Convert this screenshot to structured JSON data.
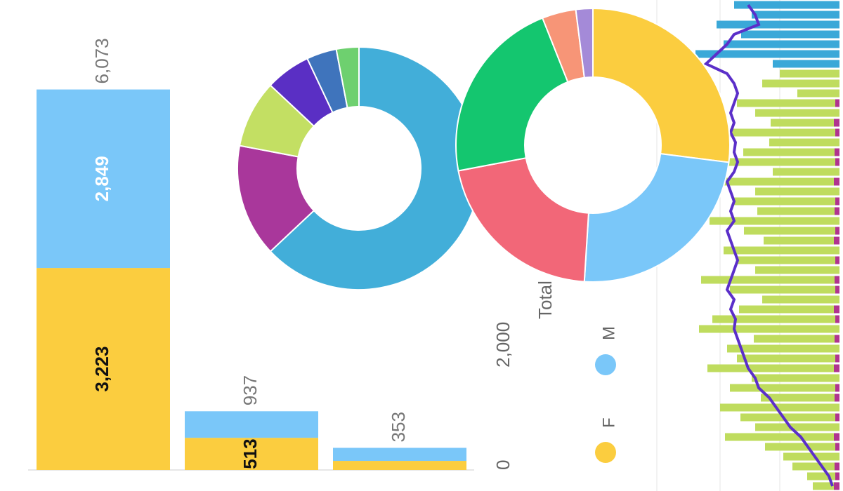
{
  "chart_data": [
    {
      "type": "stacked-bar",
      "y_label": "Total",
      "categories": [
        null,
        null,
        null
      ],
      "series": [
        {
          "name": "F",
          "color": "#fbcd3f",
          "values": [
            3223,
            513,
            145
          ],
          "value_labels": [
            "3,223",
            "513",
            null
          ]
        },
        {
          "name": "M",
          "color": "#7ac7f9",
          "values": [
            2849,
            424,
            208
          ],
          "value_labels": [
            "2,849",
            null,
            null
          ]
        }
      ],
      "totals": [
        6073,
        937,
        353
      ],
      "total_labels": [
        "6,073",
        "937",
        "353"
      ],
      "ylim": [
        0,
        7500
      ],
      "yticks": [
        0,
        {
          "value": 2000,
          "label": "2,000"
        }
      ]
    },
    {
      "type": "donut",
      "colors": [
        "#42aed9",
        "#a9379b",
        "#c3df63",
        "#5a2fc4",
        "#3f74bc",
        "#6ed06f"
      ],
      "values": [
        63,
        15,
        9,
        6,
        4,
        3
      ]
    },
    {
      "type": "donut",
      "colors": [
        "#fbcd3f",
        "#7ac7f9",
        "#f26778",
        "#14c66f",
        "#f79577",
        "#a48ad8"
      ],
      "values": [
        27,
        24,
        21,
        22,
        4,
        2
      ]
    },
    {
      "type": "barh-line",
      "xlim": [
        0,
        260
      ],
      "series": [
        {
          "color": "#b0348f",
          "values": [
            null,
            null,
            null,
            null,
            null,
            null,
            null,
            null,
            null,
            null,
            6,
            null,
            8,
            6,
            null,
            7,
            6,
            null,
            8,
            null,
            6,
            7,
            null,
            6,
            8,
            null,
            6,
            null,
            7,
            6,
            null,
            8,
            6,
            null,
            7,
            null,
            6,
            8,
            null,
            6,
            7,
            null,
            6,
            null,
            8,
            6,
            null,
            7,
            6,
            8
          ]
        },
        {
          "color": "#3aa8d8",
          "values": [
            150,
            125,
            175,
            140,
            165,
            205,
            95,
            null,
            null,
            null,
            null,
            null,
            null,
            null,
            null,
            null,
            null,
            null,
            null,
            null,
            null,
            null,
            null,
            null,
            null,
            null,
            null,
            null,
            null,
            null,
            null,
            null,
            null,
            null,
            null,
            null,
            null,
            null,
            null,
            null,
            null,
            null,
            null,
            null,
            null,
            null,
            null,
            null,
            null,
            null
          ]
        },
        {
          "color": "#bfdc5e",
          "values": [
            null,
            null,
            null,
            null,
            null,
            null,
            null,
            85,
            110,
            60,
            140,
            120,
            90,
            150,
            100,
            130,
            175,
            95,
            160,
            120,
            145,
            110,
            185,
            130,
            100,
            165,
            140,
            120,
            190,
            150,
            110,
            135,
            175,
            200,
            115,
            160,
            140,
            180,
            125,
            150,
            105,
            170,
            135,
            120,
            155,
            100,
            80,
            60,
            40,
            30
          ]
        }
      ],
      "line": {
        "color": "#5b2fc9",
        "values": [
          130,
          120,
          115,
          150,
          160,
          175,
          190,
          160,
          150,
          145,
          150,
          155,
          150,
          155,
          148,
          150,
          145,
          150,
          160,
          155,
          150,
          155,
          150,
          160,
          155,
          150,
          145,
          150,
          155,
          160,
          150,
          155,
          148,
          150,
          145,
          140,
          135,
          130,
          120,
          115,
          100,
          90,
          80,
          70,
          55,
          45,
          35,
          25,
          15,
          10
        ]
      }
    }
  ]
}
